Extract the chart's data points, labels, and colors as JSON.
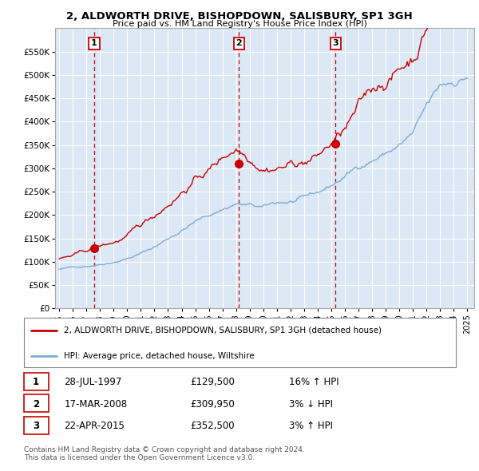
{
  "title": "2, ALDWORTH DRIVE, BISHOPDOWN, SALISBURY, SP1 3GH",
  "subtitle": "Price paid vs. HM Land Registry's House Price Index (HPI)",
  "ylim": [
    0,
    600000
  ],
  "yticks": [
    0,
    50000,
    100000,
    150000,
    200000,
    250000,
    300000,
    350000,
    400000,
    450000,
    500000,
    550000
  ],
  "ytick_labels": [
    "£0",
    "£50K",
    "£100K",
    "£150K",
    "£200K",
    "£250K",
    "£300K",
    "£350K",
    "£400K",
    "£450K",
    "£500K",
    "£550K"
  ],
  "xlim_start": 1994.7,
  "xlim_end": 2025.5,
  "xticks": [
    1995,
    1996,
    1997,
    1998,
    1999,
    2000,
    2001,
    2002,
    2003,
    2004,
    2005,
    2006,
    2007,
    2008,
    2009,
    2010,
    2011,
    2012,
    2013,
    2014,
    2015,
    2016,
    2017,
    2018,
    2019,
    2020,
    2021,
    2022,
    2023,
    2024,
    2025
  ],
  "background_color": "#ffffff",
  "plot_bg_color": "#dce8f5",
  "grid_color": "#ffffff",
  "sale_color": "#cc0000",
  "hpi_color": "#7aadd4",
  "purchase_dates": [
    1997.57,
    2008.21,
    2015.31
  ],
  "purchase_prices": [
    129500,
    309950,
    352500
  ],
  "purchase_labels": [
    "1",
    "2",
    "3"
  ],
  "legend_sale_label": "2, ALDWORTH DRIVE, BISHOPDOWN, SALISBURY, SP1 3GH (detached house)",
  "legend_hpi_label": "HPI: Average price, detached house, Wiltshire",
  "table_rows": [
    [
      "1",
      "28-JUL-1997",
      "£129,500",
      "16% ↑ HPI"
    ],
    [
      "2",
      "17-MAR-2008",
      "£309,950",
      "3% ↓ HPI"
    ],
    [
      "3",
      "22-APR-2015",
      "£352,500",
      "3% ↑ HPI"
    ]
  ],
  "footer": "Contains HM Land Registry data © Crown copyright and database right 2024.\nThis data is licensed under the Open Government Licence v3.0."
}
